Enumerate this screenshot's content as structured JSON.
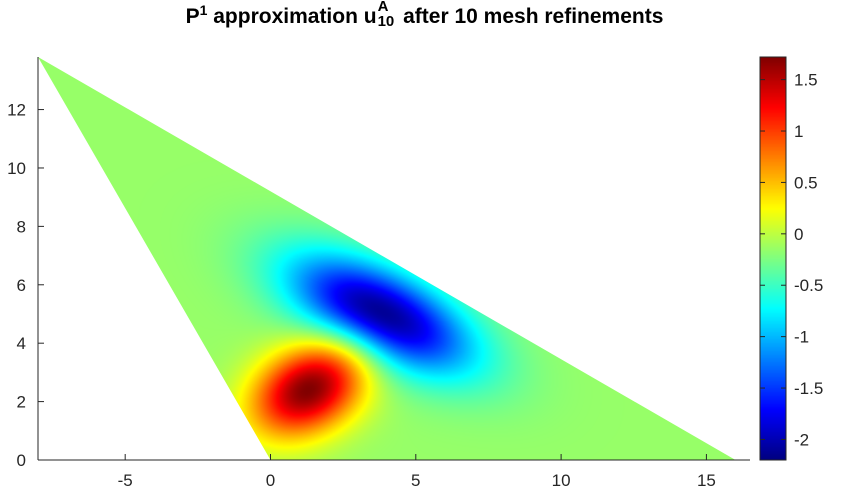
{
  "chart_data": {
    "type": "heatmap",
    "title": {
      "prefix": "P",
      "prefix_sup": "1",
      "middle": " approximation u",
      "sup": "A",
      "sub": "10",
      "suffix": " after 10 mesh refinements"
    },
    "domain_vertices": [
      [
        -8,
        13.8
      ],
      [
        0,
        0
      ],
      [
        16,
        0
      ]
    ],
    "xlim": [
      -8,
      16.5
    ],
    "ylim": [
      0,
      13.8
    ],
    "x_ticks": [
      -5,
      0,
      5,
      10,
      15
    ],
    "x_tick_labels": [
      "-5",
      "0",
      "5",
      "10",
      "15"
    ],
    "y_ticks": [
      0,
      2,
      4,
      6,
      8,
      10,
      12
    ],
    "y_tick_labels": [
      "0",
      "2",
      "4",
      "6",
      "8",
      "10",
      "12"
    ],
    "colormap": "jet",
    "clim": [
      -2.2,
      1.72
    ],
    "colorbar_ticks": [
      1.5,
      1,
      0.5,
      0,
      -0.5,
      -1,
      -1.5,
      -2
    ],
    "colorbar_tick_labels": [
      "1.5",
      "1",
      "0.5",
      "0",
      "-0.5",
      "-1",
      "-1.5",
      "-2"
    ],
    "colorbar_location": "right",
    "features": [
      {
        "kind": "maximum",
        "center": [
          1.3,
          2.4
        ],
        "value": 1.72
      },
      {
        "kind": "minimum",
        "center": [
          3.8,
          5.0
        ],
        "value": -2.2
      }
    ],
    "background_value": -0.15
  }
}
